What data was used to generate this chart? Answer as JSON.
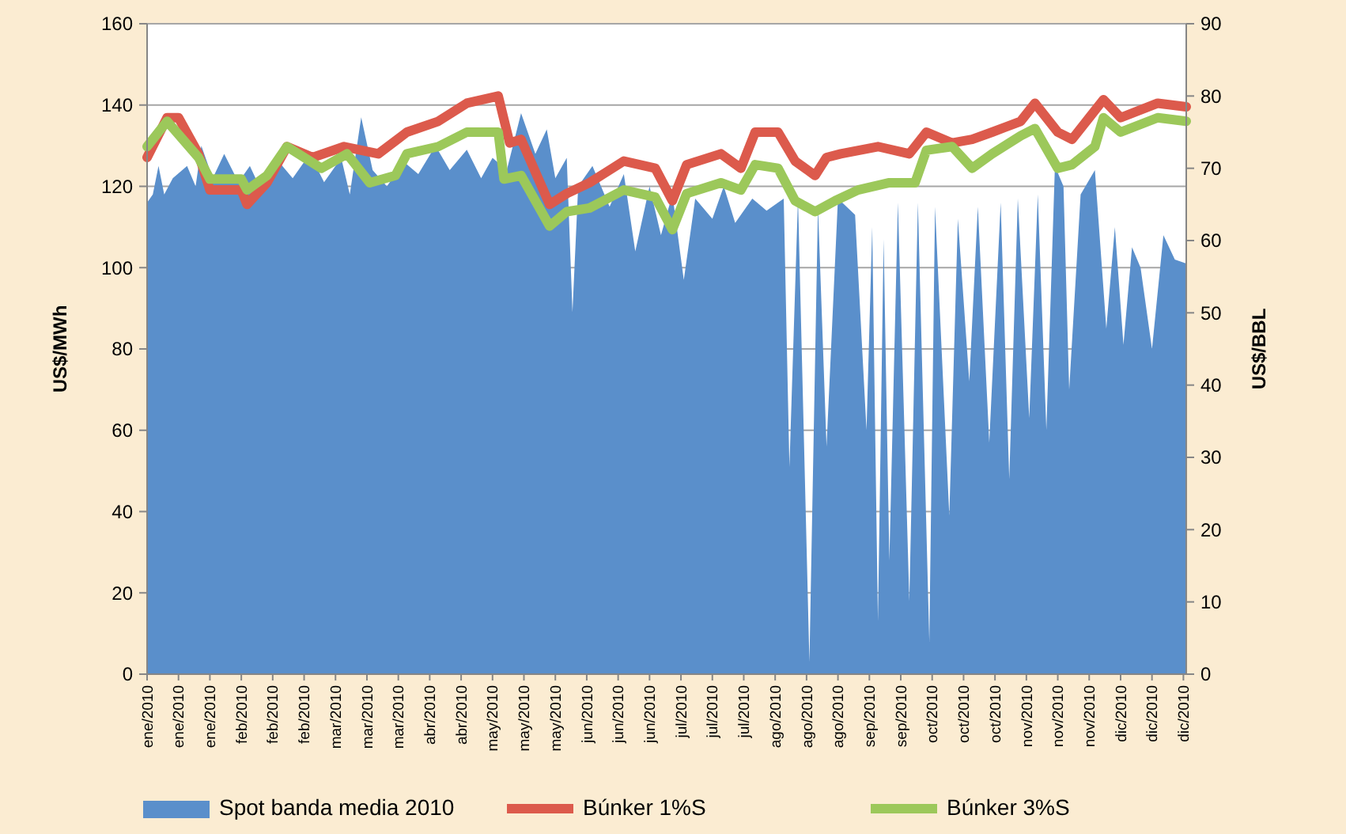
{
  "chart_data": {
    "type": "line",
    "ylabel": "US$/MWh",
    "y2label": "US$/BBL",
    "xlim": [
      "2010-01-01",
      "2010-12-31"
    ],
    "xticks": [
      {
        "value": "2010-01-01",
        "label": "ene/2010"
      },
      {
        "value": "2010-01-12",
        "label": "ene/2010"
      },
      {
        "value": "2010-01-23",
        "label": "ene/2010"
      },
      {
        "value": "2010-02-03",
        "label": "feb/2010"
      },
      {
        "value": "2010-02-14",
        "label": "feb/2010"
      },
      {
        "value": "2010-02-25",
        "label": "feb/2010"
      },
      {
        "value": "2010-03-08",
        "label": "mar/2010"
      },
      {
        "value": "2010-03-19",
        "label": "mar/2010"
      },
      {
        "value": "2010-03-30",
        "label": "mar/2010"
      },
      {
        "value": "2010-04-10",
        "label": "abr/2010"
      },
      {
        "value": "2010-04-21",
        "label": "abr/2010"
      },
      {
        "value": "2010-05-02",
        "label": "may/2010"
      },
      {
        "value": "2010-05-13",
        "label": "may/2010"
      },
      {
        "value": "2010-05-24",
        "label": "may/2010"
      },
      {
        "value": "2010-06-04",
        "label": "jun/2010"
      },
      {
        "value": "2010-06-15",
        "label": "jun/2010"
      },
      {
        "value": "2010-06-26",
        "label": "jun/2010"
      },
      {
        "value": "2010-07-07",
        "label": "jul/2010"
      },
      {
        "value": "2010-07-18",
        "label": "jul/2010"
      },
      {
        "value": "2010-07-29",
        "label": "jul/2010"
      },
      {
        "value": "2010-08-09",
        "label": "ago/2010"
      },
      {
        "value": "2010-08-20",
        "label": "ago/2010"
      },
      {
        "value": "2010-08-31",
        "label": "ago/2010"
      },
      {
        "value": "2010-09-11",
        "label": "sep/2010"
      },
      {
        "value": "2010-09-22",
        "label": "sep/2010"
      },
      {
        "value": "2010-10-03",
        "label": "oct/2010"
      },
      {
        "value": "2010-10-14",
        "label": "oct/2010"
      },
      {
        "value": "2010-10-25",
        "label": "oct/2010"
      },
      {
        "value": "2010-11-05",
        "label": "nov/2010"
      },
      {
        "value": "2010-11-16",
        "label": "nov/2010"
      },
      {
        "value": "2010-11-27",
        "label": "nov/2010"
      },
      {
        "value": "2010-12-08",
        "label": "dic/2010"
      },
      {
        "value": "2010-12-19",
        "label": "dic/2010"
      },
      {
        "value": "2010-12-30",
        "label": "dic/2010"
      }
    ],
    "ylim": [
      0,
      160
    ],
    "yticks": [
      0,
      20,
      40,
      60,
      80,
      100,
      120,
      140,
      160
    ],
    "y2lim": [
      0,
      90
    ],
    "y2ticks": [
      0,
      10,
      20,
      30,
      40,
      50,
      60,
      70,
      80,
      90
    ],
    "grid": "y",
    "legend": "bottom",
    "marker": "none",
    "line_style": "solid",
    "series": [
      {
        "name": "Spot banda media 2010",
        "type": "area",
        "color": "#5a8fcb",
        "x": [
          "2010-01-01",
          "2010-01-03",
          "2010-01-05",
          "2010-01-07",
          "2010-01-10",
          "2010-01-15",
          "2010-01-18",
          "2010-01-20",
          "2010-01-24",
          "2010-01-28",
          "2010-02-02",
          "2010-02-06",
          "2010-02-10",
          "2010-02-15",
          "2010-02-21",
          "2010-02-27",
          "2010-03-04",
          "2010-03-10",
          "2010-03-13",
          "2010-03-17",
          "2010-03-21",
          "2010-03-26",
          "2010-04-01",
          "2010-04-06",
          "2010-04-12",
          "2010-04-17",
          "2010-04-23",
          "2010-04-28",
          "2010-05-02",
          "2010-05-07",
          "2010-05-12",
          "2010-05-17",
          "2010-05-21",
          "2010-05-24",
          "2010-05-28",
          "2010-05-30",
          "2010-06-01",
          "2010-06-06",
          "2010-06-12",
          "2010-06-17",
          "2010-06-21",
          "2010-06-26",
          "2010-06-30",
          "2010-07-04",
          "2010-07-08",
          "2010-07-12",
          "2010-07-18",
          "2010-07-22",
          "2010-07-26",
          "2010-08-01",
          "2010-08-06",
          "2010-08-12",
          "2010-08-14",
          "2010-08-17",
          "2010-08-21",
          "2010-08-24",
          "2010-08-27",
          "2010-08-31",
          "2010-09-06",
          "2010-09-10",
          "2010-09-12",
          "2010-09-14",
          "2010-09-16",
          "2010-09-18",
          "2010-09-21",
          "2010-09-25",
          "2010-09-28",
          "2010-10-02",
          "2010-10-04",
          "2010-10-09",
          "2010-10-12",
          "2010-10-16",
          "2010-10-19",
          "2010-10-23",
          "2010-10-27",
          "2010-10-30",
          "2010-11-02",
          "2010-11-06",
          "2010-11-09",
          "2010-11-12",
          "2010-11-15",
          "2010-11-18",
          "2010-11-20",
          "2010-11-24",
          "2010-11-29",
          "2010-12-03",
          "2010-12-06",
          "2010-12-09",
          "2010-12-12",
          "2010-12-15",
          "2010-12-19",
          "2010-12-23",
          "2010-12-27",
          "2010-12-31"
        ],
        "values": [
          116,
          118,
          125,
          118,
          122,
          125,
          120,
          130,
          122,
          128,
          121,
          125,
          119,
          127,
          122,
          128,
          121,
          127,
          118,
          137,
          124,
          120,
          126,
          123,
          130,
          124,
          129,
          122,
          127,
          124,
          138,
          128,
          134,
          122,
          127,
          89,
          120,
          125,
          115,
          123,
          104,
          120,
          108,
          118,
          97,
          117,
          112,
          120,
          111,
          117,
          114,
          117,
          51,
          117,
          3,
          115,
          56,
          117,
          113,
          60,
          110,
          13,
          107,
          28,
          116,
          18,
          116,
          8,
          115,
          39,
          112,
          72,
          115,
          57,
          116,
          48,
          117,
          63,
          118,
          60,
          125,
          120,
          70,
          118,
          124,
          85,
          110,
          81,
          105,
          100,
          80,
          108,
          102,
          101
        ]
      },
      {
        "name": "Búnker 1%S",
        "axis": "y2",
        "color": "#dc5a4c",
        "x": [
          "2010-01-01",
          "2010-01-08",
          "2010-01-12",
          "2010-01-19",
          "2010-01-23",
          "2010-02-03",
          "2010-02-05",
          "2010-02-12",
          "2010-02-19",
          "2010-02-28",
          "2010-03-11",
          "2010-03-23",
          "2010-04-02",
          "2010-04-13",
          "2010-04-23",
          "2010-05-04",
          "2010-05-08",
          "2010-05-12",
          "2010-05-22",
          "2010-05-28",
          "2010-06-05",
          "2010-06-17",
          "2010-06-28",
          "2010-07-04",
          "2010-07-09",
          "2010-07-21",
          "2010-07-28",
          "2010-08-02",
          "2010-08-10",
          "2010-08-16",
          "2010-08-23",
          "2010-08-27",
          "2010-09-01",
          "2010-09-14",
          "2010-09-25",
          "2010-10-01",
          "2010-10-10",
          "2010-10-17",
          "2010-10-24",
          "2010-11-03",
          "2010-11-08",
          "2010-11-16",
          "2010-11-21",
          "2010-11-27",
          "2010-12-02",
          "2010-12-08",
          "2010-12-21",
          "2010-12-31"
        ],
        "values": [
          71.5,
          77,
          77,
          72,
          67,
          67,
          65,
          68,
          73,
          71.5,
          73,
          72,
          75,
          76.5,
          79,
          80,
          73.5,
          74,
          65,
          66.5,
          68,
          71,
          70,
          65.5,
          70.5,
          72,
          70,
          75,
          75,
          71,
          69,
          71.5,
          72,
          73,
          72,
          75,
          73.5,
          74,
          75,
          76.5,
          79,
          75,
          74,
          77,
          79.5,
          77,
          79,
          78.5
        ]
      },
      {
        "name": "Búnker 3%S",
        "axis": "y2",
        "color": "#9cc85a",
        "x": [
          "2010-01-01",
          "2010-01-08",
          "2010-01-19",
          "2010-01-23",
          "2010-02-03",
          "2010-02-05",
          "2010-02-12",
          "2010-02-19",
          "2010-03-03",
          "2010-03-12",
          "2010-03-20",
          "2010-03-29",
          "2010-04-02",
          "2010-04-13",
          "2010-04-23",
          "2010-05-04",
          "2010-05-06",
          "2010-05-12",
          "2010-05-22",
          "2010-05-28",
          "2010-06-05",
          "2010-06-17",
          "2010-06-28",
          "2010-07-04",
          "2010-07-09",
          "2010-07-21",
          "2010-07-28",
          "2010-08-02",
          "2010-08-10",
          "2010-08-16",
          "2010-08-23",
          "2010-08-30",
          "2010-09-07",
          "2010-09-18",
          "2010-09-27",
          "2010-10-01",
          "2010-10-10",
          "2010-10-17",
          "2010-10-24",
          "2010-11-03",
          "2010-11-08",
          "2010-11-16",
          "2010-11-21",
          "2010-11-29",
          "2010-12-02",
          "2010-12-08",
          "2010-12-21",
          "2010-12-31"
        ],
        "values": [
          73,
          76.5,
          71.5,
          68.5,
          68.5,
          67,
          69,
          73,
          70,
          72,
          68,
          69,
          72,
          73,
          75,
          75,
          68.5,
          69,
          62,
          64,
          64.5,
          67,
          66,
          61.5,
          66.5,
          68,
          67,
          70.5,
          70,
          65.5,
          64,
          65.5,
          67,
          68,
          68,
          72.5,
          73,
          70,
          72,
          74.5,
          75.5,
          70,
          70.5,
          73,
          77,
          75,
          77,
          76.5
        ]
      }
    ]
  }
}
